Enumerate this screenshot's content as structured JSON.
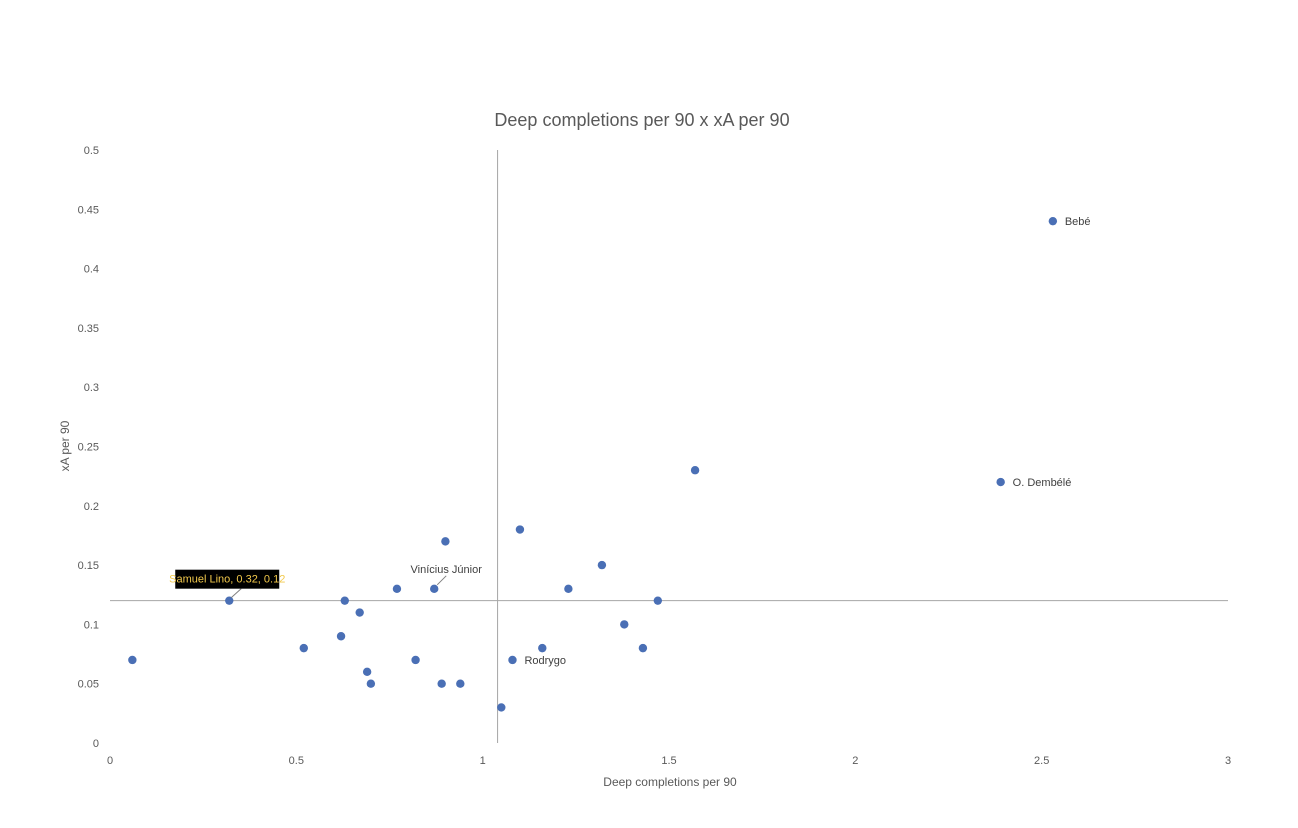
{
  "chart_data": {
    "type": "scatter",
    "title": "Deep completions per 90 x xA per 90",
    "xlabel": "Deep completions per 90",
    "ylabel": "xA per 90",
    "xlim": [
      0,
      3
    ],
    "ylim": [
      0,
      0.5
    ],
    "x_ticks": [
      "0",
      "0.5",
      "1",
      "1.5",
      "2",
      "2.5",
      "3"
    ],
    "y_ticks": [
      "0",
      "0.05",
      "0.1",
      "0.15",
      "0.2",
      "0.25",
      "0.3",
      "0.35",
      "0.4",
      "0.45",
      "0.5"
    ],
    "grid": false,
    "reference_lines": {
      "x": 1.04,
      "y": 0.12
    },
    "marker_color": "#4a6fb5",
    "points": [
      {
        "x": 0.06,
        "y": 0.07
      },
      {
        "x": 0.32,
        "y": 0.12,
        "label": "Samuel Lino, 0.32, 0.12",
        "label_style": "callout"
      },
      {
        "x": 0.52,
        "y": 0.08
      },
      {
        "x": 0.62,
        "y": 0.09
      },
      {
        "x": 0.63,
        "y": 0.12
      },
      {
        "x": 0.67,
        "y": 0.11
      },
      {
        "x": 0.69,
        "y": 0.06
      },
      {
        "x": 0.7,
        "y": 0.05
      },
      {
        "x": 0.77,
        "y": 0.13
      },
      {
        "x": 0.82,
        "y": 0.07
      },
      {
        "x": 0.87,
        "y": 0.13,
        "label": "Vinícius Júnior",
        "label_style": "leader"
      },
      {
        "x": 0.89,
        "y": 0.05
      },
      {
        "x": 0.9,
        "y": 0.17
      },
      {
        "x": 0.94,
        "y": 0.05
      },
      {
        "x": 1.05,
        "y": 0.03
      },
      {
        "x": 1.08,
        "y": 0.07,
        "label": "Rodrygo",
        "label_style": "right"
      },
      {
        "x": 1.1,
        "y": 0.18
      },
      {
        "x": 1.16,
        "y": 0.08
      },
      {
        "x": 1.23,
        "y": 0.13
      },
      {
        "x": 1.32,
        "y": 0.15
      },
      {
        "x": 1.38,
        "y": 0.1
      },
      {
        "x": 1.43,
        "y": 0.08
      },
      {
        "x": 1.47,
        "y": 0.12
      },
      {
        "x": 1.57,
        "y": 0.23
      },
      {
        "x": 2.39,
        "y": 0.22,
        "label": "O. Dembélé",
        "label_style": "right"
      },
      {
        "x": 2.53,
        "y": 0.44,
        "label": "Bebé",
        "label_style": "right"
      }
    ]
  }
}
